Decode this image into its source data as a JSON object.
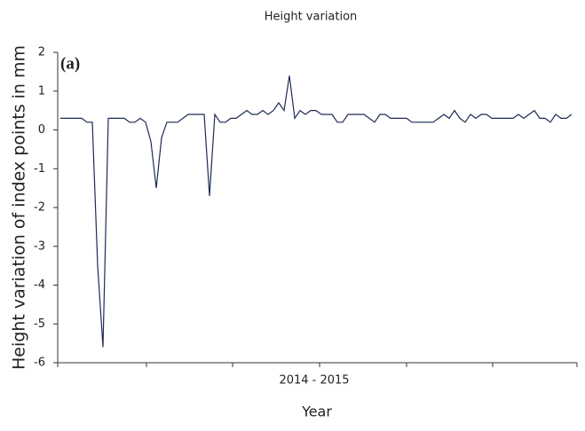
{
  "chart_data": {
    "type": "line",
    "title": "Height variation",
    "annotation": "(a)",
    "ylabel": "Height variation of index points in mm",
    "xlabel": "Year",
    "period_label": "2014 - 2015",
    "color": "#1f2a55",
    "values": [
      0.3,
      0.3,
      0.3,
      0.3,
      0.3,
      0.2,
      0.2,
      -3.5,
      -5.6,
      0.3,
      0.3,
      0.3,
      0.3,
      0.2,
      0.2,
      0.3,
      0.2,
      -0.3,
      -1.5,
      -0.2,
      0.2,
      0.2,
      0.2,
      0.3,
      0.4,
      0.4,
      0.4,
      0.4,
      -1.7,
      0.4,
      0.2,
      0.2,
      0.3,
      0.3,
      0.4,
      0.5,
      0.4,
      0.4,
      0.5,
      0.4,
      0.5,
      0.7,
      0.5,
      1.4,
      0.3,
      0.5,
      0.4,
      0.5,
      0.5,
      0.4,
      0.4,
      0.4,
      0.2,
      0.2,
      0.4,
      0.4,
      0.4,
      0.4,
      0.3,
      0.2,
      0.4,
      0.4,
      0.3,
      0.3,
      0.3,
      0.3,
      0.2,
      0.2,
      0.2,
      0.2,
      0.2,
      0.3,
      0.4,
      0.3,
      0.5,
      0.3,
      0.2,
      0.4,
      0.3,
      0.4,
      0.4,
      0.3,
      0.3,
      0.3,
      0.3,
      0.3,
      0.4,
      0.3,
      0.4,
      0.5,
      0.3,
      0.3,
      0.2,
      0.4,
      0.3,
      0.3,
      0.4
    ],
    "ylim": [
      -6,
      2
    ],
    "yticks": [
      -6,
      -5,
      -4,
      -3,
      -2,
      -1,
      0,
      1,
      2
    ],
    "grid": false
  }
}
